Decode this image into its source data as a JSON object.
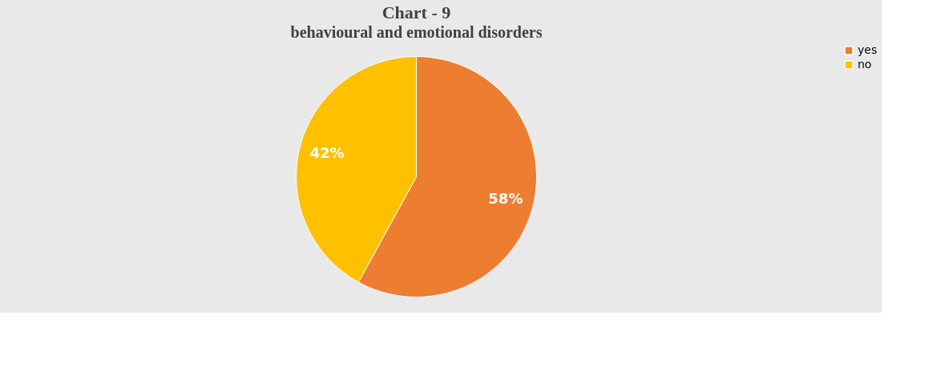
{
  "chart_data": {
    "type": "pie",
    "title": "Chart - 9",
    "subtitle": "behavioural and emotional disorders",
    "categories": [
      "yes",
      "no"
    ],
    "values": [
      58,
      42
    ],
    "colors": [
      "#ed7d31",
      "#ffc000"
    ],
    "value_labels": [
      "58%",
      "42%"
    ],
    "legend": "right"
  }
}
